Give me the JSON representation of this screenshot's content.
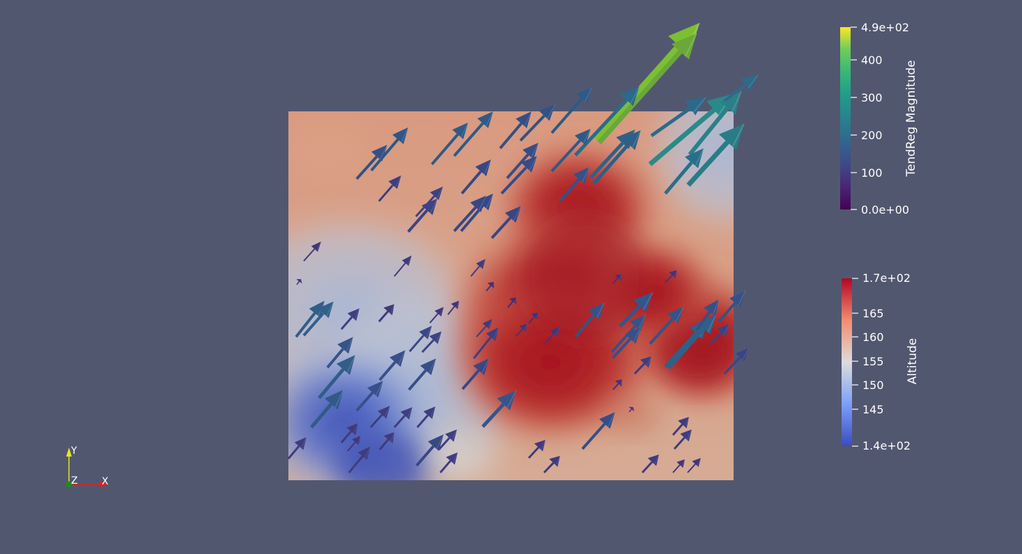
{
  "scene": {
    "background_color": "#525770"
  },
  "scalar_bar_vectors": {
    "title": "TendReg Magnitude",
    "tick_labels": [
      "4.9e+02",
      "400",
      "300",
      "200",
      "100",
      "0.0e+00"
    ],
    "colormap": "viridis"
  },
  "scalar_bar_surface": {
    "title": "Altitude",
    "tick_labels": [
      "1.7e+02",
      "165",
      "160",
      "155",
      "150",
      "145",
      "1.4e+02"
    ],
    "colormap": "cool-to-warm"
  },
  "orientation_axes": {
    "x_label": "X",
    "y_label": "Y",
    "z_label": "Z",
    "x_color": "#e0201e",
    "y_color": "#e6e61e",
    "z_color": "#1e8a1e"
  }
}
